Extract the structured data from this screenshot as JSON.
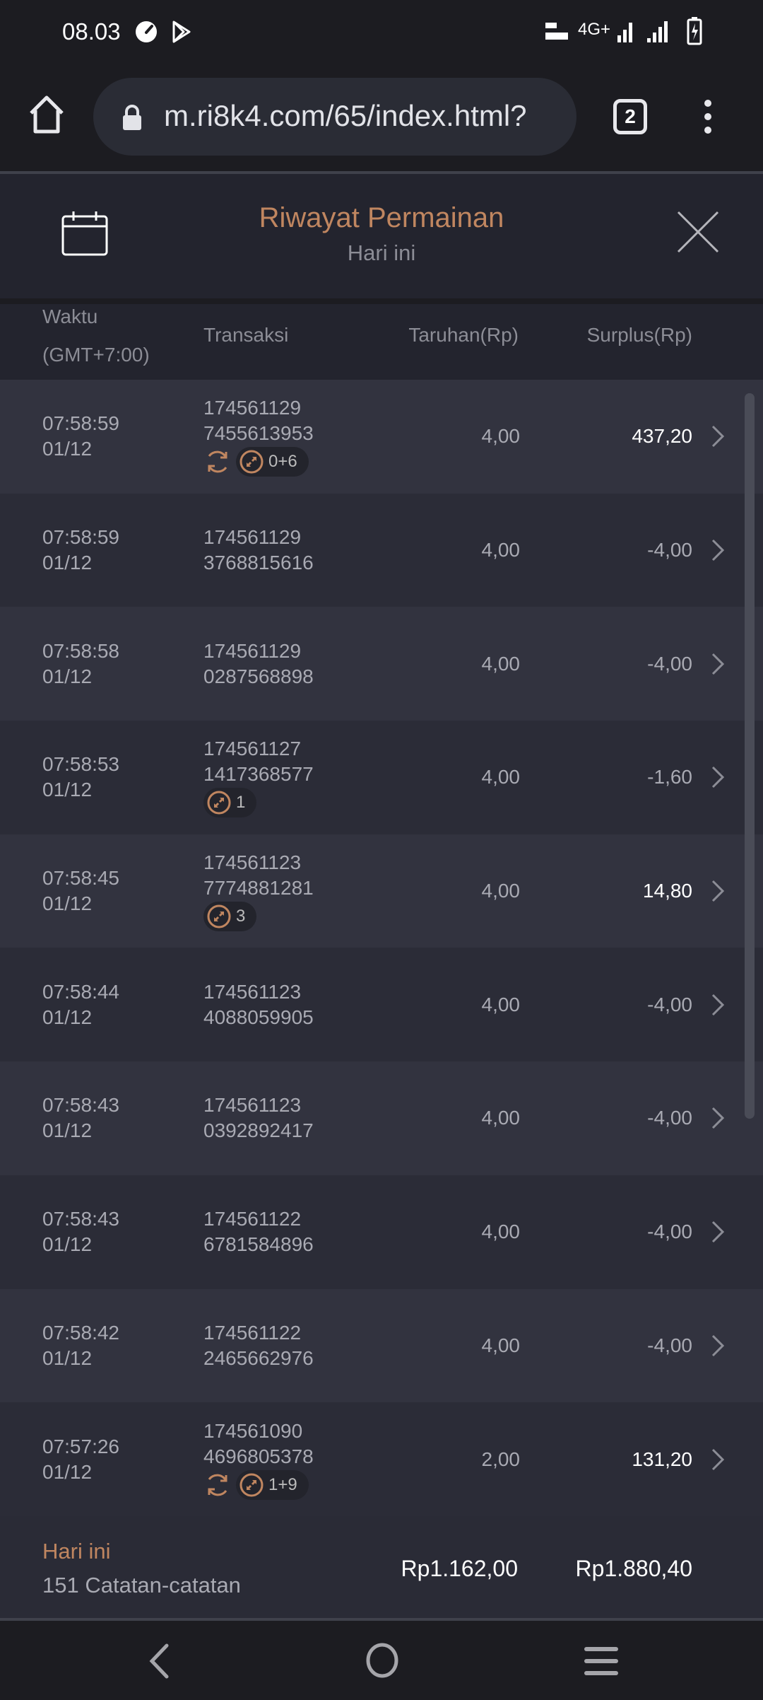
{
  "status_bar": {
    "time": "08.03",
    "network": "4G+"
  },
  "browser": {
    "url": "m.ri8k4.com/65/index.html?",
    "tab_count": "2"
  },
  "modal": {
    "title": "Riwayat Permainan",
    "subtitle": "Hari ini"
  },
  "columns": {
    "time_line1": "Waktu",
    "time_line2": "(GMT+7:00)",
    "transaction": "Transaksi",
    "bet": "Taruhan(Rp)",
    "surplus": "Surplus(Rp)"
  },
  "rows": [
    {
      "time": "07:58:59",
      "date": "01/12",
      "tx1": "174561129",
      "tx2": "7455613953",
      "bet": "4,00",
      "surplus": "437,20",
      "positive": true,
      "respin": true,
      "badge": "0+6"
    },
    {
      "time": "07:58:59",
      "date": "01/12",
      "tx1": "174561129",
      "tx2": "3768815616",
      "bet": "4,00",
      "surplus": "-4,00"
    },
    {
      "time": "07:58:58",
      "date": "01/12",
      "tx1": "174561129",
      "tx2": "0287568898",
      "bet": "4,00",
      "surplus": "-4,00"
    },
    {
      "time": "07:58:53",
      "date": "01/12",
      "tx1": "174561127",
      "tx2": "1417368577",
      "bet": "4,00",
      "surplus": "-1,60",
      "badge": "1"
    },
    {
      "time": "07:58:45",
      "date": "01/12",
      "tx1": "174561123",
      "tx2": "7774881281",
      "bet": "4,00",
      "surplus": "14,80",
      "positive": true,
      "badge": "3"
    },
    {
      "time": "07:58:44",
      "date": "01/12",
      "tx1": "174561123",
      "tx2": "4088059905",
      "bet": "4,00",
      "surplus": "-4,00"
    },
    {
      "time": "07:58:43",
      "date": "01/12",
      "tx1": "174561123",
      "tx2": "0392892417",
      "bet": "4,00",
      "surplus": "-4,00"
    },
    {
      "time": "07:58:43",
      "date": "01/12",
      "tx1": "174561122",
      "tx2": "6781584896",
      "bet": "4,00",
      "surplus": "-4,00"
    },
    {
      "time": "07:58:42",
      "date": "01/12",
      "tx1": "174561122",
      "tx2": "2465662976",
      "bet": "4,00",
      "surplus": "-4,00"
    },
    {
      "time": "07:57:26",
      "date": "01/12",
      "tx1": "174561090",
      "tx2": "4696805378",
      "bet": "2,00",
      "surplus": "131,20",
      "positive": true,
      "respin": true,
      "badge": "1+9"
    }
  ],
  "footer": {
    "period": "Hari ini",
    "records": "151 Catatan-catatan",
    "total_bet": "Rp1.162,00",
    "total_surplus": "Rp1.880,40"
  },
  "colors": {
    "accent": "#c08660",
    "row_odd": "#32333f",
    "row_even": "#2b2c37"
  }
}
